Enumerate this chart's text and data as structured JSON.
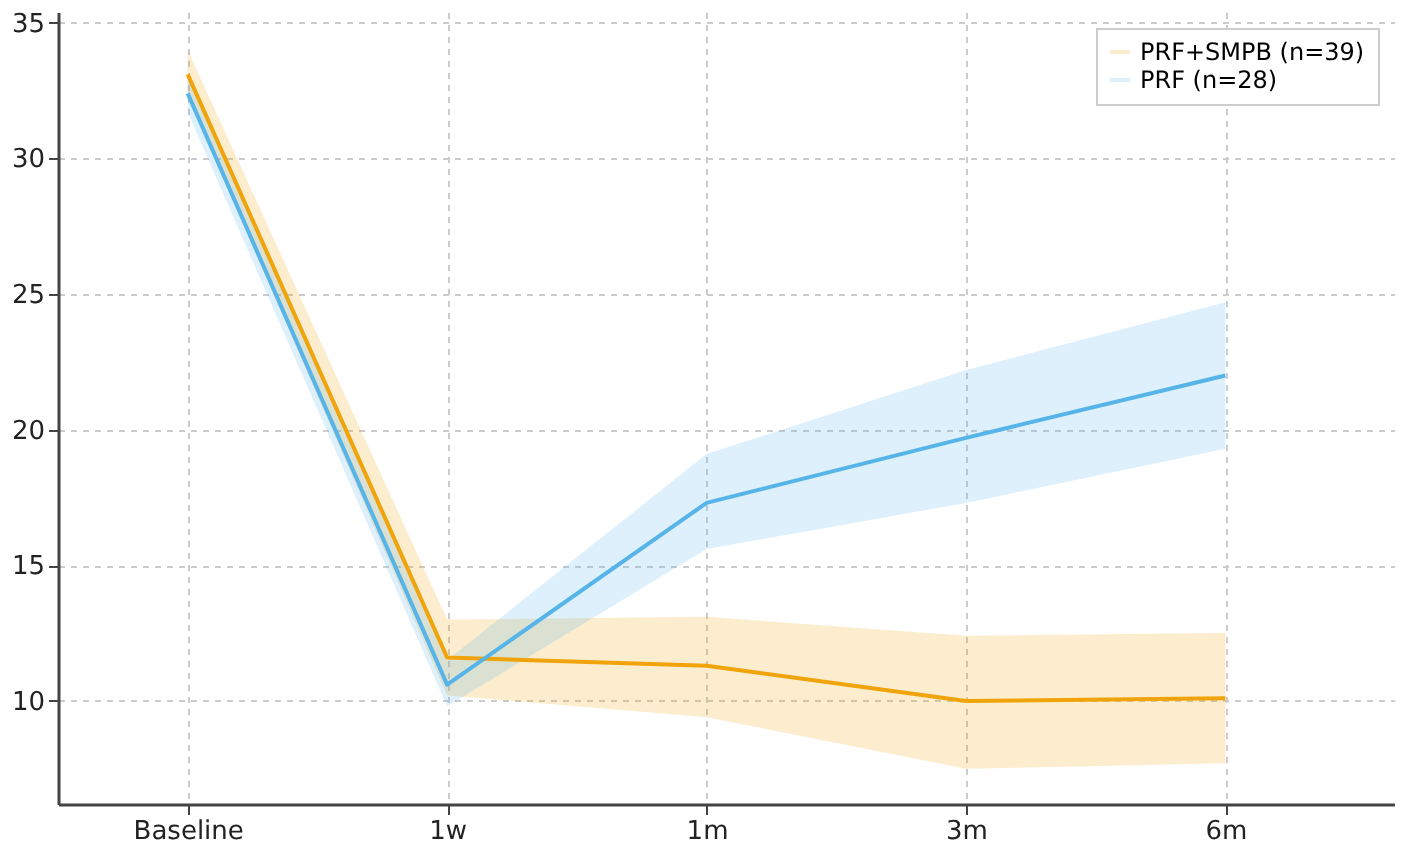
{
  "chart_data": {
    "type": "line",
    "categories": [
      "Baseline",
      "1w",
      "1m",
      "3m",
      "6m"
    ],
    "series": [
      {
        "name": "PRF+SMPB (n=39)",
        "color": "#f0a30a",
        "values": [
          33.1,
          11.6,
          11.3,
          10.0,
          10.1
        ],
        "lower": [
          32.3,
          10.2,
          9.4,
          7.5,
          7.7
        ],
        "upper": [
          34.0,
          13.0,
          13.1,
          12.4,
          12.5
        ]
      },
      {
        "name": "PRF (n=28)",
        "color": "#56b4e9",
        "values": [
          32.4,
          10.6,
          17.3,
          19.7,
          22.0
        ],
        "lower": [
          31.7,
          9.8,
          15.6,
          17.3,
          19.3
        ],
        "upper": [
          33.1,
          11.5,
          19.1,
          22.2,
          24.7
        ]
      }
    ],
    "ylim": [
      6.2,
      35.4
    ],
    "yticks": [
      10,
      15,
      20,
      25,
      30,
      35
    ],
    "grid": true,
    "legend": "top right",
    "line_style": "solid",
    "marker": "none"
  }
}
